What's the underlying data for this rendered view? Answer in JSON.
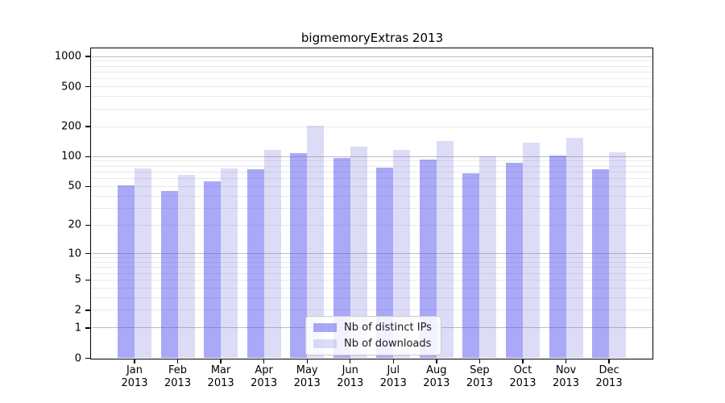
{
  "chart_data": {
    "type": "bar",
    "title": "bigmemoryExtras 2013",
    "year_label": "2013",
    "categories": [
      "Jan",
      "Feb",
      "Mar",
      "Apr",
      "May",
      "Jun",
      "Jul",
      "Aug",
      "Sep",
      "Oct",
      "Nov",
      "Dec"
    ],
    "series": [
      {
        "name": "Nb of distinct IPs",
        "color": "rgba(83,83,239,0.5)",
        "rendered_color": "#a9a9f7",
        "values": [
          51,
          45,
          56,
          74,
          108,
          97,
          78,
          94,
          68,
          86,
          103,
          74
        ]
      },
      {
        "name": "Nb of downloads",
        "color": "rgba(115,115,219,0.25)",
        "rendered_color": "#dcdcf6",
        "values": [
          76,
          65,
          76,
          116,
          202,
          125,
          117,
          142,
          100,
          138,
          155,
          110
        ]
      }
    ],
    "yscale": "log1p",
    "yticks": [
      0,
      1,
      2,
      5,
      10,
      20,
      50,
      100,
      200,
      500,
      1000
    ],
    "ylim": [
      0,
      1216
    ],
    "xlabel": "",
    "ylabel": "",
    "grid": "on",
    "legend_position": "inside-bottom-center",
    "colors": {
      "grid_major": "#bdbdbd",
      "grid_minor": "#e9e9e9",
      "axis": "#000000",
      "background": "#ffffff"
    }
  }
}
